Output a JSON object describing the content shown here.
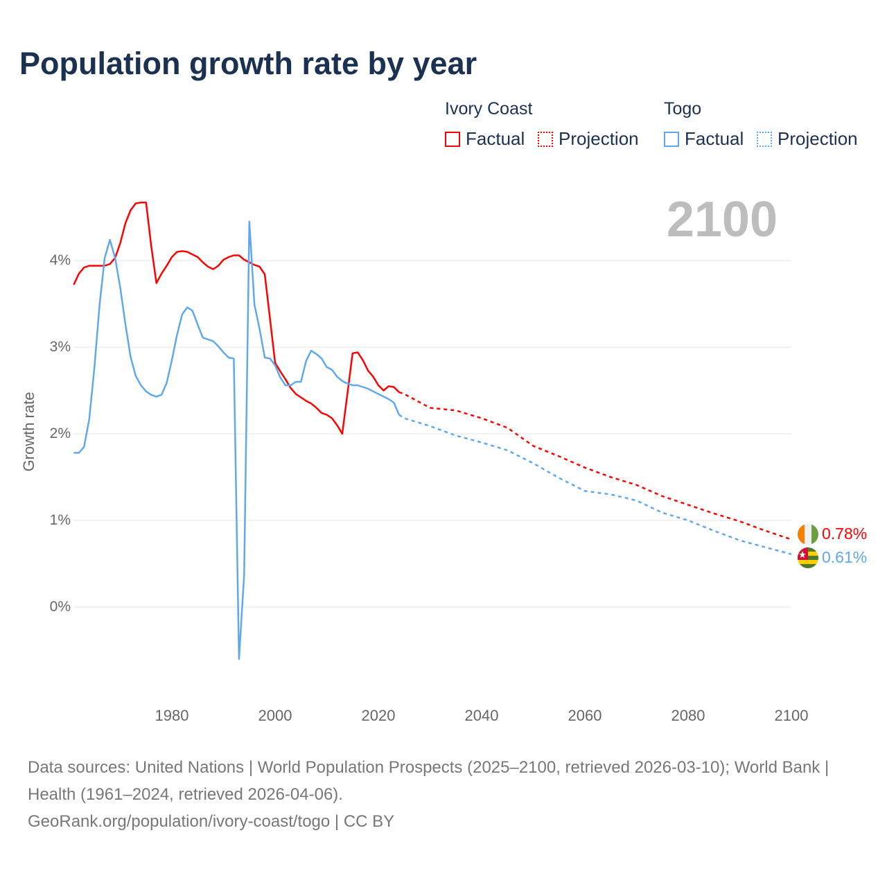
{
  "title": "Population growth rate by year",
  "big_year": "2100",
  "legend": {
    "groups": [
      {
        "name": "Ivory Coast",
        "factual": "Factual",
        "projection": "Projection",
        "color": "#ff0000"
      },
      {
        "name": "Togo",
        "factual": "Factual",
        "projection": "Projection",
        "color": "#5fa8ee"
      }
    ]
  },
  "end_labels": {
    "ivory_coast": "0.78%",
    "togo": "0.61%"
  },
  "footer": {
    "line1": "Data sources: United Nations | World Population Prospects (2025–2100, retrieved 2026-03-10); World Bank | Health (1961–2024, retrieved 2026-04-06).",
    "line2": "GeoRank.org/population/ivory-coast/togo | CC BY"
  },
  "chart_data": {
    "type": "line",
    "title": "Population growth rate by year",
    "xlabel": "",
    "ylabel": "Growth rate",
    "xlim": [
      1961,
      2100
    ],
    "ylim": [
      -0.6,
      4.7
    ],
    "x_ticks": [
      1980,
      2000,
      2020,
      2040,
      2060,
      2080,
      2100
    ],
    "x_tick_labels": [
      "1980",
      "2000",
      "2020",
      "2040",
      "2060",
      "2080",
      "2100"
    ],
    "y_ticks": [
      0,
      1,
      2,
      3,
      4
    ],
    "y_tick_labels": [
      "0%",
      "1%",
      "2%",
      "3%",
      "4%"
    ],
    "grid": true,
    "legend_position": "top-right",
    "series": [
      {
        "name": "Ivory Coast",
        "kind": "Factual",
        "color": "#ff0000",
        "x": [
          1961,
          1962,
          1963,
          1964,
          1965,
          1966,
          1967,
          1968,
          1969,
          1970,
          1971,
          1972,
          1973,
          1974,
          1975,
          1976,
          1977,
          1978,
          1979,
          1980,
          1981,
          1982,
          1983,
          1984,
          1985,
          1986,
          1987,
          1988,
          1989,
          1990,
          1991,
          1992,
          1993,
          1994,
          1995,
          1996,
          1997,
          1998,
          1999,
          2000,
          2001,
          2002,
          2003,
          2004,
          2005,
          2006,
          2007,
          2008,
          2009,
          2010,
          2011,
          2012,
          2013,
          2014,
          2015,
          2016,
          2017,
          2018,
          2019,
          2020,
          2021,
          2022,
          2023,
          2024
        ],
        "y": [
          3.72,
          3.85,
          3.92,
          3.94,
          3.94,
          3.94,
          3.94,
          3.96,
          4.03,
          4.2,
          4.43,
          4.58,
          4.66,
          4.67,
          4.67,
          4.17,
          3.74,
          3.85,
          3.94,
          4.04,
          4.1,
          4.11,
          4.1,
          4.07,
          4.04,
          3.98,
          3.93,
          3.9,
          3.94,
          4.01,
          4.04,
          4.06,
          4.06,
          4.01,
          3.98,
          3.95,
          3.93,
          3.84,
          3.33,
          2.82,
          2.72,
          2.63,
          2.53,
          2.46,
          2.42,
          2.38,
          2.35,
          2.3,
          2.24,
          2.22,
          2.18,
          2.1,
          2.0,
          2.46,
          2.93,
          2.94,
          2.85,
          2.73,
          2.66,
          2.56,
          2.5,
          2.55,
          2.54,
          2.48
        ]
      },
      {
        "name": "Ivory Coast",
        "kind": "Projection",
        "color": "#ff0000",
        "x": [
          2024,
          2025,
          2030,
          2035,
          2040,
          2045,
          2050,
          2055,
          2060,
          2065,
          2070,
          2075,
          2080,
          2085,
          2090,
          2095,
          2100
        ],
        "y": [
          2.48,
          2.46,
          2.3,
          2.27,
          2.18,
          2.07,
          1.86,
          1.74,
          1.61,
          1.5,
          1.41,
          1.28,
          1.18,
          1.08,
          0.99,
          0.88,
          0.78
        ]
      },
      {
        "name": "Togo",
        "kind": "Factual",
        "color": "#5fa8ee",
        "x": [
          1961,
          1962,
          1963,
          1964,
          1965,
          1966,
          1967,
          1968,
          1969,
          1970,
          1971,
          1972,
          1973,
          1974,
          1975,
          1976,
          1977,
          1978,
          1979,
          1980,
          1981,
          1982,
          1983,
          1984,
          1985,
          1986,
          1987,
          1988,
          1989,
          1990,
          1991,
          1992,
          1993,
          1994,
          1995,
          1996,
          1997,
          1998,
          1999,
          2000,
          2001,
          2002,
          2003,
          2004,
          2005,
          2006,
          2007,
          2008,
          2009,
          2010,
          2011,
          2012,
          2013,
          2014,
          2015,
          2016,
          2017,
          2018,
          2019,
          2020,
          2021,
          2022,
          2023,
          2024
        ],
        "y": [
          1.78,
          1.78,
          1.85,
          2.17,
          2.77,
          3.49,
          4.03,
          4.24,
          4.03,
          3.69,
          3.27,
          2.89,
          2.67,
          2.56,
          2.49,
          2.45,
          2.43,
          2.45,
          2.59,
          2.85,
          3.14,
          3.38,
          3.46,
          3.42,
          3.26,
          3.11,
          3.09,
          3.07,
          3.01,
          2.94,
          2.88,
          2.87,
          -0.6,
          0.37,
          4.45,
          3.49,
          3.21,
          2.88,
          2.87,
          2.79,
          2.65,
          2.56,
          2.56,
          2.6,
          2.6,
          2.84,
          2.96,
          2.92,
          2.87,
          2.77,
          2.74,
          2.66,
          2.61,
          2.58,
          2.56,
          2.56,
          2.54,
          2.52,
          2.49,
          2.46,
          2.43,
          2.4,
          2.36,
          2.22
        ]
      },
      {
        "name": "Togo",
        "kind": "Projection",
        "color": "#5fa8ee",
        "x": [
          2024,
          2025,
          2030,
          2035,
          2040,
          2045,
          2050,
          2055,
          2060,
          2065,
          2070,
          2075,
          2080,
          2085,
          2090,
          2095,
          2100
        ],
        "y": [
          2.22,
          2.18,
          2.09,
          1.98,
          1.9,
          1.81,
          1.66,
          1.49,
          1.34,
          1.3,
          1.23,
          1.09,
          1.0,
          0.88,
          0.77,
          0.69,
          0.61
        ]
      }
    ]
  }
}
